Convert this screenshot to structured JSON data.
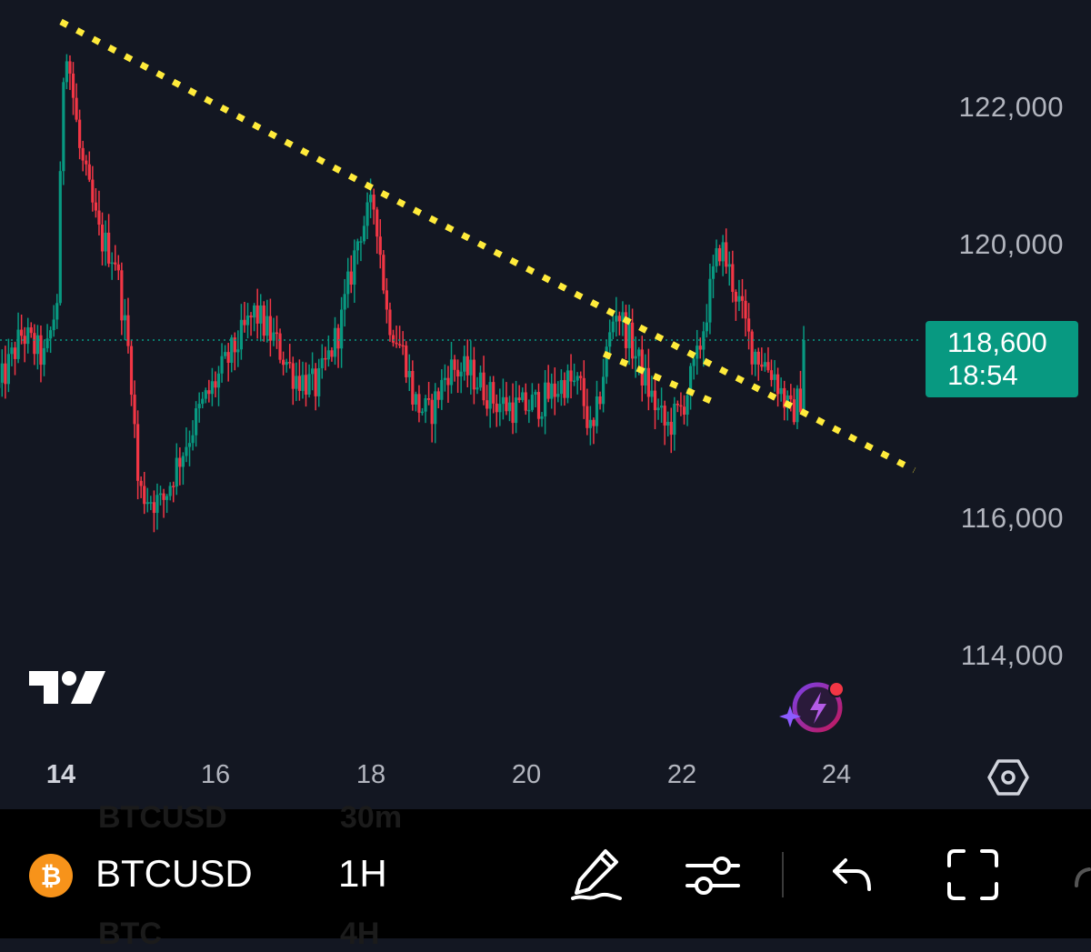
{
  "chart_data": {
    "type": "candlestick",
    "symbol": "BTCUSD",
    "interval": "1H",
    "y_ticks": [
      "122,000",
      "120,000",
      "116,000",
      "114,000"
    ],
    "y_range": [
      113000,
      123300
    ],
    "x_ticks": [
      "14",
      "16",
      "18",
      "20",
      "22",
      "24"
    ],
    "x_range_days": [
      13.2,
      25.7
    ],
    "current_price": "118,600",
    "countdown": "18:54",
    "current_price_value": 118600,
    "colors": {
      "up": "#089981",
      "down": "#f23645",
      "trendline": "#ffeb3b",
      "background": "#131722",
      "axis_text": "#b2b5be"
    },
    "trendlines": [
      {
        "style": "dotted",
        "points": [
          [
            14.0,
            123250
          ],
          [
            18.05,
            120800
          ],
          [
            25.0,
            116700
          ]
        ]
      },
      {
        "style": "dotted",
        "points": [
          [
            21.0,
            118400
          ],
          [
            22.4,
            117700
          ]
        ]
      }
    ],
    "anchors": [
      [
        13.2,
        117900
      ],
      [
        13.5,
        118700
      ],
      [
        13.8,
        118300
      ],
      [
        13.95,
        119200
      ],
      [
        14.05,
        123150
      ],
      [
        14.25,
        121300
      ],
      [
        14.5,
        120100
      ],
      [
        14.7,
        119800
      ],
      [
        14.9,
        118200
      ],
      [
        15.0,
        116400
      ],
      [
        15.3,
        116200
      ],
      [
        15.5,
        116800
      ],
      [
        15.8,
        117600
      ],
      [
        16.1,
        118200
      ],
      [
        16.5,
        119000
      ],
      [
        16.75,
        118600
      ],
      [
        17.0,
        118100
      ],
      [
        17.3,
        117900
      ],
      [
        17.6,
        118800
      ],
      [
        17.85,
        120200
      ],
      [
        18.05,
        120600
      ],
      [
        18.2,
        119000
      ],
      [
        18.45,
        118300
      ],
      [
        18.55,
        117700
      ],
      [
        18.75,
        117500
      ],
      [
        19.0,
        118200
      ],
      [
        19.3,
        118100
      ],
      [
        19.6,
        117700
      ],
      [
        19.9,
        117600
      ],
      [
        20.2,
        117700
      ],
      [
        20.5,
        118000
      ],
      [
        20.7,
        117900
      ],
      [
        20.85,
        117100
      ],
      [
        21.0,
        118200
      ],
      [
        21.15,
        119100
      ],
      [
        21.4,
        118400
      ],
      [
        21.6,
        117800
      ],
      [
        21.8,
        117300
      ],
      [
        22.0,
        117600
      ],
      [
        22.2,
        118300
      ],
      [
        22.4,
        119500
      ],
      [
        22.5,
        120000
      ],
      [
        22.7,
        119300
      ],
      [
        22.9,
        118500
      ],
      [
        23.2,
        118100
      ],
      [
        23.4,
        117500
      ],
      [
        23.55,
        117800
      ],
      [
        23.6,
        118600
      ]
    ]
  },
  "toolbar": {
    "symbol": "BTCUSD",
    "interval": "1H",
    "ghost_symbol_prev": "BTCUSD",
    "ghost_interval_prev": "30m",
    "ghost_symbol_next": "BTC",
    "ghost_interval_next": "4H"
  },
  "icons": {
    "logo": "tradingview-logo-icon",
    "assistant": "ai-assistant-icon",
    "settings": "settings-hexagon-icon",
    "bitcoin": "bitcoin-icon",
    "draw": "pen-icon",
    "indicators": "sliders-icon",
    "undo": "undo-icon",
    "fullscreen": "fullscreen-icon"
  }
}
